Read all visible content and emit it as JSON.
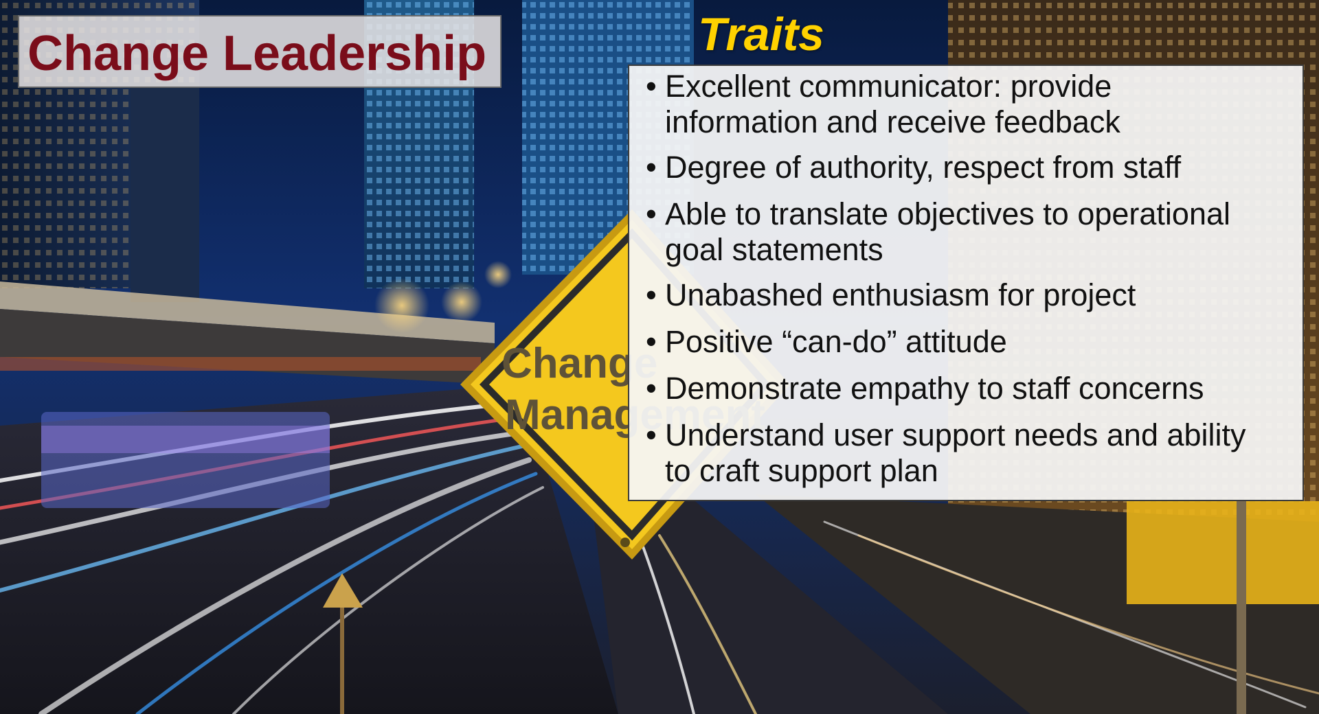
{
  "slide": {
    "title": "Change Leadership",
    "heading": "Traits",
    "sign_text": "Change Management",
    "bullet": "•",
    "traits": [
      "Excellent communicator: provide\ninformation and receive feedback",
      "Degree of authority, respect from staff",
      "Able to translate objectives to operational\ngoal statements",
      "Unabashed enthusiasm for project",
      "Positive “can-do” attitude",
      "Demonstrate empathy to staff concerns",
      "Understand user support needs and ability\nto craft support plan"
    ]
  },
  "colors": {
    "title_text": "#7a0d1a",
    "heading_text": "#ffd200",
    "sign_yellow": "#f4c81e"
  }
}
